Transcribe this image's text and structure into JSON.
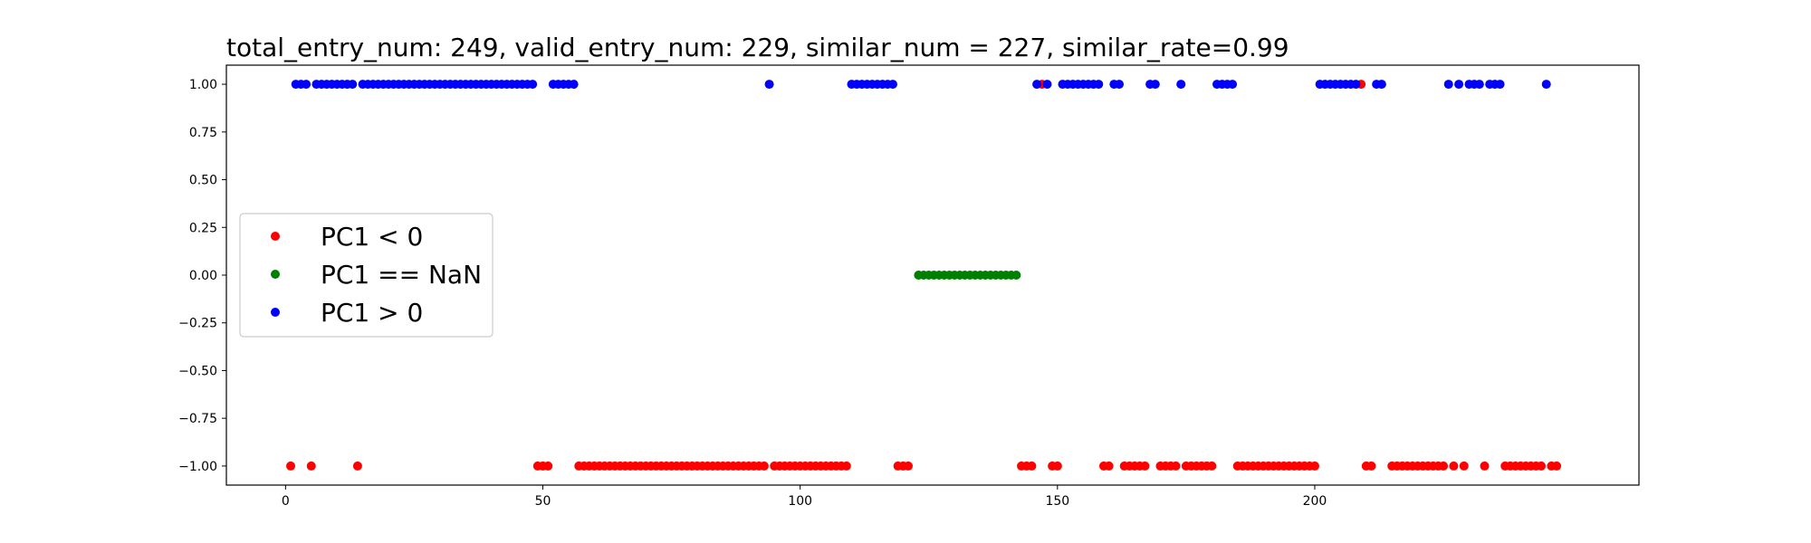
{
  "chart_data": {
    "type": "scatter",
    "title": "total_entry_num: 249, valid_entry_num: 229, similar_num = 227, similar_rate=0.99",
    "xlabel": "",
    "ylabel": "",
    "xlim": [
      -11.5,
      263
    ],
    "ylim": [
      -1.1,
      1.1
    ],
    "xticks": [
      0,
      50,
      100,
      150,
      200
    ],
    "xtick_labels": [
      "0",
      "50",
      "100",
      "150",
      "200"
    ],
    "yticks": [
      1.0,
      0.75,
      0.5,
      0.25,
      0.0,
      -0.25,
      -0.5,
      -0.75,
      -1.0
    ],
    "ytick_labels": [
      "1.00",
      "0.75",
      "0.50",
      "0.25",
      "0.00",
      "−0.25",
      "−0.50",
      "−0.75",
      "−1.00"
    ],
    "grid": false,
    "legend_position": "center-left",
    "series": [
      {
        "name": "PC1 < 0",
        "color": "#ff0000",
        "points": [
          [
            1,
            -1
          ],
          [
            5,
            -1
          ],
          [
            14,
            -1
          ],
          [
            49,
            -1
          ],
          [
            50,
            -1
          ],
          [
            51,
            -1
          ],
          [
            57,
            -1
          ],
          [
            58,
            -1
          ],
          [
            59,
            -1
          ],
          [
            60,
            -1
          ],
          [
            61,
            -1
          ],
          [
            62,
            -1
          ],
          [
            63,
            -1
          ],
          [
            64,
            -1
          ],
          [
            65,
            -1
          ],
          [
            66,
            -1
          ],
          [
            67,
            -1
          ],
          [
            68,
            -1
          ],
          [
            69,
            -1
          ],
          [
            70,
            -1
          ],
          [
            71,
            -1
          ],
          [
            72,
            -1
          ],
          [
            73,
            -1
          ],
          [
            74,
            -1
          ],
          [
            75,
            -1
          ],
          [
            76,
            -1
          ],
          [
            77,
            -1
          ],
          [
            78,
            -1
          ],
          [
            79,
            -1
          ],
          [
            80,
            -1
          ],
          [
            81,
            -1
          ],
          [
            82,
            -1
          ],
          [
            83,
            -1
          ],
          [
            84,
            -1
          ],
          [
            85,
            -1
          ],
          [
            86,
            -1
          ],
          [
            87,
            -1
          ],
          [
            88,
            -1
          ],
          [
            89,
            -1
          ],
          [
            90,
            -1
          ],
          [
            91,
            -1
          ],
          [
            92,
            -1
          ],
          [
            93,
            -1
          ],
          [
            95,
            -1
          ],
          [
            96,
            -1
          ],
          [
            97,
            -1
          ],
          [
            98,
            -1
          ],
          [
            99,
            -1
          ],
          [
            100,
            -1
          ],
          [
            101,
            -1
          ],
          [
            102,
            -1
          ],
          [
            103,
            -1
          ],
          [
            104,
            -1
          ],
          [
            105,
            -1
          ],
          [
            106,
            -1
          ],
          [
            107,
            -1
          ],
          [
            108,
            -1
          ],
          [
            109,
            -1
          ],
          [
            119,
            -1
          ],
          [
            120,
            -1
          ],
          [
            121,
            -1
          ],
          [
            143,
            -1
          ],
          [
            144,
            -1
          ],
          [
            145,
            -1
          ],
          [
            147,
            1
          ],
          [
            149,
            -1
          ],
          [
            150,
            -1
          ],
          [
            159,
            -1
          ],
          [
            160,
            -1
          ],
          [
            163,
            -1
          ],
          [
            164,
            -1
          ],
          [
            165,
            -1
          ],
          [
            166,
            -1
          ],
          [
            167,
            -1
          ],
          [
            170,
            -1
          ],
          [
            171,
            -1
          ],
          [
            172,
            -1
          ],
          [
            173,
            -1
          ],
          [
            175,
            -1
          ],
          [
            176,
            -1
          ],
          [
            177,
            -1
          ],
          [
            178,
            -1
          ],
          [
            179,
            -1
          ],
          [
            180,
            -1
          ],
          [
            185,
            -1
          ],
          [
            186,
            -1
          ],
          [
            187,
            -1
          ],
          [
            188,
            -1
          ],
          [
            189,
            -1
          ],
          [
            190,
            -1
          ],
          [
            191,
            -1
          ],
          [
            192,
            -1
          ],
          [
            193,
            -1
          ],
          [
            194,
            -1
          ],
          [
            195,
            -1
          ],
          [
            196,
            -1
          ],
          [
            197,
            -1
          ],
          [
            198,
            -1
          ],
          [
            199,
            -1
          ],
          [
            200,
            -1
          ],
          [
            209,
            1
          ],
          [
            210,
            -1
          ],
          [
            211,
            -1
          ],
          [
            215,
            -1
          ],
          [
            216,
            -1
          ],
          [
            217,
            -1
          ],
          [
            218,
            -1
          ],
          [
            219,
            -1
          ],
          [
            220,
            -1
          ],
          [
            221,
            -1
          ],
          [
            222,
            -1
          ],
          [
            223,
            -1
          ],
          [
            224,
            -1
          ],
          [
            225,
            -1
          ],
          [
            227,
            -1
          ],
          [
            229,
            -1
          ],
          [
            233,
            -1
          ],
          [
            237,
            -1
          ],
          [
            238,
            -1
          ],
          [
            239,
            -1
          ],
          [
            240,
            -1
          ],
          [
            241,
            -1
          ],
          [
            242,
            -1
          ],
          [
            243,
            -1
          ],
          [
            244,
            -1
          ],
          [
            246,
            -1
          ],
          [
            247,
            -1
          ]
        ]
      },
      {
        "name": "PC1 == NaN",
        "color": "#008000",
        "points": [
          [
            123,
            0
          ],
          [
            124,
            0
          ],
          [
            125,
            0
          ],
          [
            126,
            0
          ],
          [
            127,
            0
          ],
          [
            128,
            0
          ],
          [
            129,
            0
          ],
          [
            130,
            0
          ],
          [
            131,
            0
          ],
          [
            132,
            0
          ],
          [
            133,
            0
          ],
          [
            134,
            0
          ],
          [
            135,
            0
          ],
          [
            136,
            0
          ],
          [
            137,
            0
          ],
          [
            138,
            0
          ],
          [
            139,
            0
          ],
          [
            140,
            0
          ],
          [
            141,
            0
          ],
          [
            142,
            0
          ]
        ]
      },
      {
        "name": "PC1 > 0",
        "color": "#0000ff",
        "points": [
          [
            2,
            1
          ],
          [
            3,
            1
          ],
          [
            4,
            1
          ],
          [
            6,
            1
          ],
          [
            7,
            1
          ],
          [
            8,
            1
          ],
          [
            9,
            1
          ],
          [
            10,
            1
          ],
          [
            11,
            1
          ],
          [
            12,
            1
          ],
          [
            13,
            1
          ],
          [
            15,
            1
          ],
          [
            16,
            1
          ],
          [
            17,
            1
          ],
          [
            18,
            1
          ],
          [
            19,
            1
          ],
          [
            20,
            1
          ],
          [
            21,
            1
          ],
          [
            22,
            1
          ],
          [
            23,
            1
          ],
          [
            24,
            1
          ],
          [
            25,
            1
          ],
          [
            26,
            1
          ],
          [
            27,
            1
          ],
          [
            28,
            1
          ],
          [
            29,
            1
          ],
          [
            30,
            1
          ],
          [
            31,
            1
          ],
          [
            32,
            1
          ],
          [
            33,
            1
          ],
          [
            34,
            1
          ],
          [
            35,
            1
          ],
          [
            36,
            1
          ],
          [
            37,
            1
          ],
          [
            38,
            1
          ],
          [
            39,
            1
          ],
          [
            40,
            1
          ],
          [
            41,
            1
          ],
          [
            42,
            1
          ],
          [
            43,
            1
          ],
          [
            44,
            1
          ],
          [
            45,
            1
          ],
          [
            46,
            1
          ],
          [
            47,
            1
          ],
          [
            48,
            1
          ],
          [
            52,
            1
          ],
          [
            53,
            1
          ],
          [
            54,
            1
          ],
          [
            55,
            1
          ],
          [
            56,
            1
          ],
          [
            94,
            1
          ],
          [
            110,
            1
          ],
          [
            111,
            1
          ],
          [
            112,
            1
          ],
          [
            113,
            1
          ],
          [
            114,
            1
          ],
          [
            115,
            1
          ],
          [
            116,
            1
          ],
          [
            117,
            1
          ],
          [
            118,
            1
          ],
          [
            146,
            1
          ],
          [
            148,
            1
          ],
          [
            151,
            1
          ],
          [
            152,
            1
          ],
          [
            153,
            1
          ],
          [
            154,
            1
          ],
          [
            155,
            1
          ],
          [
            156,
            1
          ],
          [
            157,
            1
          ],
          [
            158,
            1
          ],
          [
            161,
            1
          ],
          [
            162,
            1
          ],
          [
            168,
            1
          ],
          [
            169,
            1
          ],
          [
            174,
            1
          ],
          [
            181,
            1
          ],
          [
            182,
            1
          ],
          [
            183,
            1
          ],
          [
            184,
            1
          ],
          [
            201,
            1
          ],
          [
            202,
            1
          ],
          [
            203,
            1
          ],
          [
            204,
            1
          ],
          [
            205,
            1
          ],
          [
            206,
            1
          ],
          [
            207,
            1
          ],
          [
            208,
            1
          ],
          [
            212,
            1
          ],
          [
            213,
            1
          ],
          [
            226,
            1
          ],
          [
            228,
            1
          ],
          [
            230,
            1
          ],
          [
            231,
            1
          ],
          [
            232,
            1
          ],
          [
            234,
            1
          ],
          [
            235,
            1
          ],
          [
            236,
            1
          ],
          [
            245,
            1
          ]
        ]
      }
    ]
  }
}
